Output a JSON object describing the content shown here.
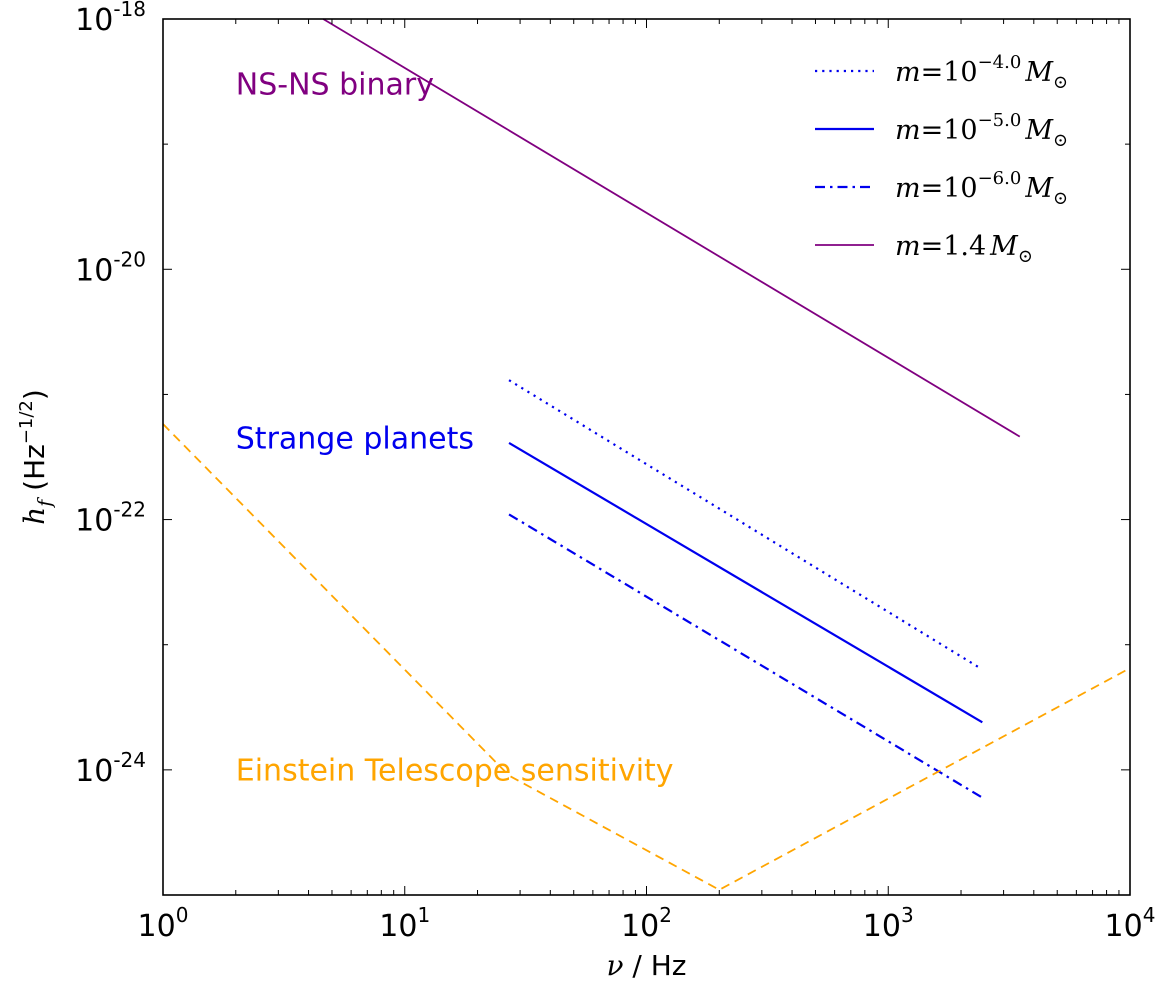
{
  "chart_data": {
    "type": "line",
    "xlabel": {
      "symbol": "ν",
      "unit": " / Hz"
    },
    "ylabel": {
      "symbol": "h",
      "sub": "f",
      "unit_pre": " (Hz",
      "unit_exp": "−1/2",
      "unit_post": ")"
    },
    "x_scale": "log",
    "y_scale": "log",
    "xlim": [
      1,
      10000
    ],
    "ylim": [
      1e-25,
      1e-18
    ],
    "x_ticks": [
      {
        "value": 1,
        "base": "10",
        "exp": "0"
      },
      {
        "value": 10,
        "base": "10",
        "exp": "1"
      },
      {
        "value": 100,
        "base": "10",
        "exp": "2"
      },
      {
        "value": 1000,
        "base": "10",
        "exp": "3"
      },
      {
        "value": 10000,
        "base": "10",
        "exp": "4"
      }
    ],
    "y_ticks": [
      {
        "value": 1e-24,
        "base": "10",
        "exp": "-24"
      },
      {
        "value": 1e-22,
        "base": "10",
        "exp": "-22"
      },
      {
        "value": 1e-20,
        "base": "10",
        "exp": "-20"
      },
      {
        "value": 1e-18,
        "base": "10",
        "exp": "-18"
      }
    ],
    "grid": false,
    "legend_position": "top-right",
    "series": [
      {
        "key": "m4",
        "legend_sym": "m",
        "legend_eq": "=10",
        "legend_sup": "−4.0",
        "legend_tail": "M",
        "legend_sub": "⊙",
        "color": "#0000ee",
        "style": "dotted",
        "width": 2.2,
        "x": [
          27,
          2400
        ],
        "y": [
          1.3e-21,
          6.5e-24
        ]
      },
      {
        "key": "m5",
        "legend_sym": "m",
        "legend_eq": "=10",
        "legend_sup": "−5.0",
        "legend_tail": "M",
        "legend_sub": "⊙",
        "color": "#0000ee",
        "style": "solid",
        "width": 2.2,
        "x": [
          27,
          2450
        ],
        "y": [
          4.1e-22,
          2.4e-24
        ]
      },
      {
        "key": "m6",
        "legend_sym": "m",
        "legend_eq": "=10",
        "legend_sup": "−6.0",
        "legend_tail": "M",
        "legend_sub": "⊙",
        "color": "#0000ee",
        "style": "dashdot",
        "width": 2.2,
        "x": [
          27,
          2450
        ],
        "y": [
          1.1e-22,
          6e-25
        ]
      },
      {
        "key": "ns",
        "legend_sym": "m",
        "legend_eq": "=1.4",
        "legend_sup": "",
        "legend_tail": "M",
        "legend_sub": "⊙",
        "color": "#800080",
        "style": "solid",
        "width": 1.8,
        "x": [
          4.6,
          3500
        ],
        "y": [
          1e-18,
          4.6e-22
        ]
      },
      {
        "key": "et",
        "color": "#ffa500",
        "style": "dashed",
        "width": 1.8,
        "x": [
          1,
          27,
          200,
          10000
        ],
        "y": [
          5.8e-22,
          9e-25,
          1.1e-25,
          6.5e-24
        ]
      }
    ],
    "annotations": [
      {
        "text": "NS-NS binary",
        "x": 2.0,
        "y": 2.5e-19,
        "color": "#800080"
      },
      {
        "text": "Strange planets",
        "x": 2.0,
        "y": 3.7e-22,
        "color": "#0000ee"
      },
      {
        "text": "Einstein Telescope sensitivity",
        "x": 2.0,
        "y": 8.2e-25,
        "color": "#ffa500"
      }
    ]
  }
}
